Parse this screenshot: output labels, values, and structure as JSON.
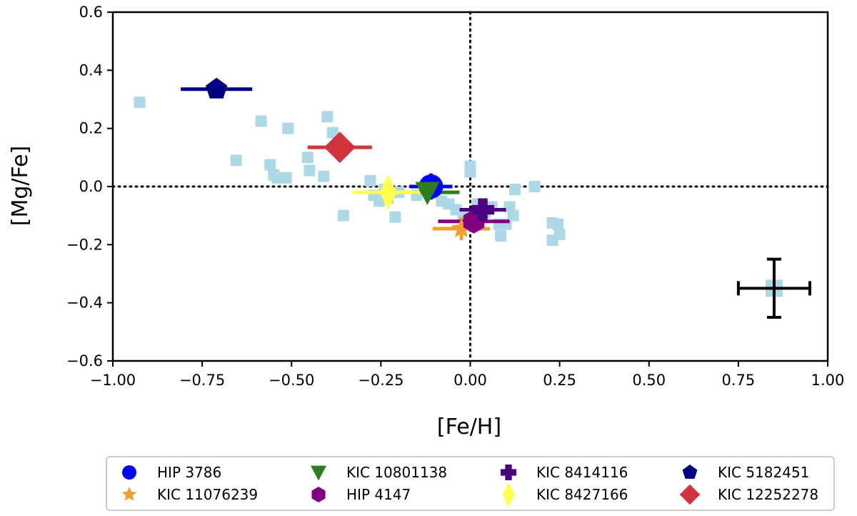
{
  "chart_data": {
    "type": "scatter",
    "title": "",
    "xlabel": "[Fe/H]",
    "ylabel": "[Mg/Fe]",
    "xlim": [
      -1.0,
      1.0
    ],
    "ylim": [
      -0.6,
      0.6
    ],
    "xticks": [
      -1.0,
      -0.75,
      -0.5,
      -0.25,
      0.0,
      0.25,
      0.5,
      0.75,
      1.0
    ],
    "xtick_labels": [
      "−1.00",
      "−0.75",
      "−0.50",
      "−0.25",
      "0.00",
      "0.25",
      "0.50",
      "0.75",
      "1.00"
    ],
    "yticks": [
      -0.6,
      -0.4,
      -0.2,
      0.0,
      0.2,
      0.4,
      0.6
    ],
    "ytick_labels": [
      "−0.6",
      "−0.4",
      "−0.2",
      "0.0",
      "0.2",
      "0.4",
      "0.6"
    ],
    "reference_lines": {
      "x": 0.0,
      "y": 0.0,
      "style": "dotted"
    },
    "background_sample": {
      "color": "#add8e6",
      "marker": "square",
      "points": [
        [
          -0.925,
          0.29
        ],
        [
          -0.655,
          0.09
        ],
        [
          -0.585,
          0.225
        ],
        [
          -0.56,
          0.075
        ],
        [
          -0.55,
          0.04
        ],
        [
          -0.54,
          0.03
        ],
        [
          -0.515,
          0.03
        ],
        [
          -0.51,
          0.2
        ],
        [
          -0.455,
          0.1
        ],
        [
          -0.45,
          0.055
        ],
        [
          -0.41,
          0.035
        ],
        [
          -0.4,
          0.24
        ],
        [
          -0.385,
          0.185
        ],
        [
          -0.355,
          0.13
        ],
        [
          -0.355,
          -0.1
        ],
        [
          -0.28,
          0.02
        ],
        [
          -0.27,
          -0.03
        ],
        [
          -0.255,
          -0.05
        ],
        [
          -0.24,
          -0.01
        ],
        [
          -0.23,
          -0.04
        ],
        [
          -0.21,
          -0.105
        ],
        [
          -0.2,
          -0.02
        ],
        [
          -0.15,
          -0.03
        ],
        [
          -0.12,
          -0.01
        ],
        [
          -0.1,
          -0.02
        ],
        [
          -0.08,
          -0.05
        ],
        [
          -0.06,
          -0.06
        ],
        [
          -0.04,
          -0.08
        ],
        [
          -0.02,
          -0.1
        ],
        [
          0.0,
          0.05
        ],
        [
          0.0,
          0.07
        ],
        [
          0.01,
          -0.11
        ],
        [
          0.02,
          -0.06
        ],
        [
          0.04,
          -0.09
        ],
        [
          0.06,
          -0.07
        ],
        [
          0.08,
          -0.13
        ],
        [
          0.085,
          -0.17
        ],
        [
          0.1,
          -0.13
        ],
        [
          0.11,
          -0.07
        ],
        [
          0.12,
          -0.1
        ],
        [
          0.125,
          -0.01
        ],
        [
          0.18,
          0.0
        ],
        [
          0.23,
          -0.125
        ],
        [
          0.23,
          -0.185
        ],
        [
          0.245,
          -0.13
        ],
        [
          0.25,
          -0.165
        ]
      ]
    },
    "series": [
      {
        "name": "HIP 3786",
        "color": "#0000ff",
        "marker": "circle",
        "x": -0.11,
        "y": 0.0,
        "xerr": 0.06,
        "yerr": 0.045
      },
      {
        "name": "KIC 11076239",
        "color": "#f0a030",
        "marker": "star",
        "x": -0.025,
        "y": -0.145,
        "xerr": 0.08,
        "yerr": 0.04
      },
      {
        "name": "KIC 10801138",
        "color": "#2e7d1e",
        "marker": "triangle-down",
        "x": -0.12,
        "y": -0.02,
        "xerr": 0.09,
        "yerr": 0.025
      },
      {
        "name": "HIP 4147",
        "color": "#800080",
        "marker": "hexagon",
        "x": 0.01,
        "y": -0.12,
        "xerr": 0.1,
        "yerr": 0.02
      },
      {
        "name": "KIC 8414116",
        "color": "#4b0082",
        "marker": "plus",
        "x": 0.035,
        "y": -0.08,
        "xerr": 0.065,
        "yerr": 0.03
      },
      {
        "name": "KIC 8427166",
        "color": "#ffff4d",
        "marker": "thin-diamond",
        "x": -0.23,
        "y": -0.02,
        "xerr": 0.1,
        "yerr": 0.04
      },
      {
        "name": "KIC 5182451",
        "color": "#000080",
        "marker": "pentagon",
        "x": -0.71,
        "y": 0.335,
        "xerr": 0.1,
        "yerr": 0.02
      },
      {
        "name": "KIC 12252278",
        "color": "#d0343c",
        "marker": "diamond",
        "x": -0.365,
        "y": 0.135,
        "xerr": 0.09,
        "yerr": 0.02
      }
    ],
    "typical_error": {
      "x": 0.85,
      "y": -0.35,
      "xerr": 0.1,
      "yerr": 0.1,
      "color": "#add8e6"
    },
    "legend": {
      "placement": "below",
      "columns": 4
    }
  }
}
